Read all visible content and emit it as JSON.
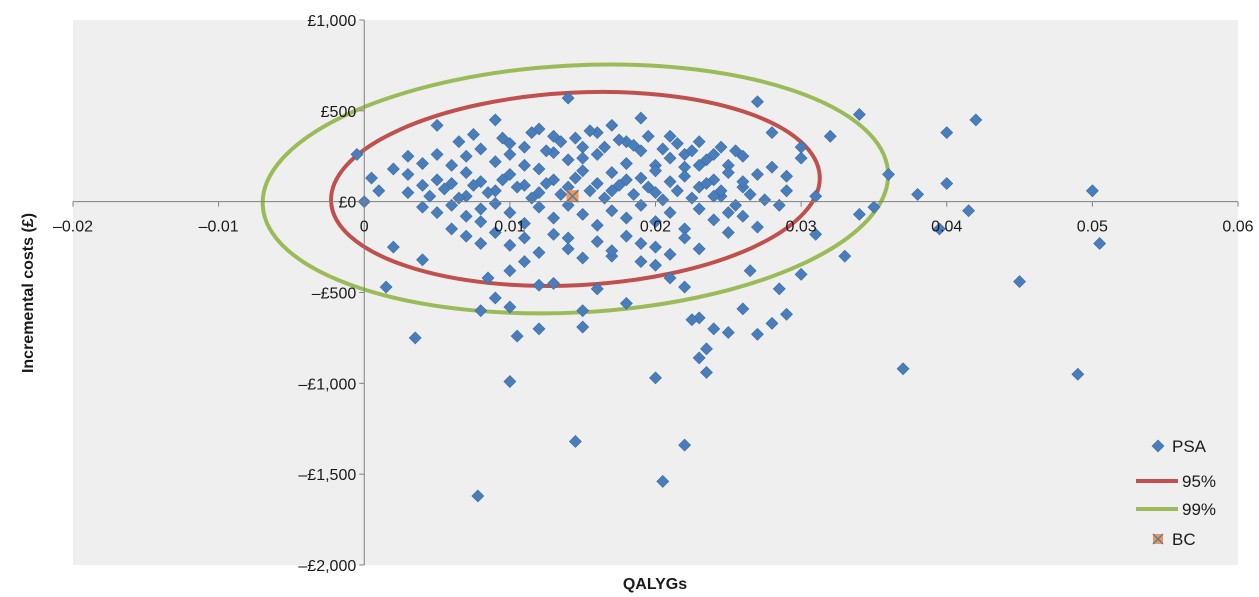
{
  "chart_data": {
    "type": "scatter",
    "title": "",
    "xlabel": "QALYGs",
    "ylabel": "Incremental costs (£)",
    "xlim": [
      -0.02,
      0.06
    ],
    "ylim": [
      -2000,
      1000
    ],
    "x_ticks": [
      -0.02,
      -0.01,
      0,
      0.01,
      0.02,
      0.03,
      0.04,
      0.05,
      0.06
    ],
    "x_tick_labels": [
      "–0.02",
      "–0.01",
      "0",
      "0.01",
      "0.02",
      "0.03",
      "0.04",
      "0.05",
      "0.06"
    ],
    "y_ticks": [
      1000,
      500,
      0,
      -500,
      -1000,
      -1500,
      -2000
    ],
    "y_tick_labels": [
      "£1,000",
      "£500",
      "£0",
      "–£500",
      "–£1,000",
      "–£1,500",
      "–£2,000"
    ],
    "grid": false,
    "legend_position": "bottom-right",
    "series": [
      {
        "name": "PSA",
        "marker": "diamond",
        "color": "#4a7ebb",
        "points": [
          [
            -0.0005,
            260
          ],
          [
            0.0,
            0
          ],
          [
            0.0005,
            130
          ],
          [
            0.002,
            -250
          ],
          [
            0.004,
            -320
          ],
          [
            0.003,
            50
          ],
          [
            0.005,
            420
          ],
          [
            0.007,
            30
          ],
          [
            0.008,
            -110
          ],
          [
            0.009,
            450
          ],
          [
            0.01,
            320
          ],
          [
            0.011,
            200
          ],
          [
            0.012,
            400
          ],
          [
            0.013,
            360
          ],
          [
            0.014,
            570
          ],
          [
            0.015,
            300
          ],
          [
            0.016,
            380
          ],
          [
            0.017,
            420
          ],
          [
            0.018,
            330
          ],
          [
            0.019,
            460
          ],
          [
            0.02,
            200
          ],
          [
            0.021,
            360
          ],
          [
            0.022,
            190
          ],
          [
            0.023,
            330
          ],
          [
            0.024,
            260
          ],
          [
            0.025,
            200
          ],
          [
            0.026,
            80
          ],
          [
            0.027,
            550
          ],
          [
            0.028,
            380
          ],
          [
            0.029,
            140
          ],
          [
            0.03,
            240
          ],
          [
            0.031,
            -180
          ],
          [
            0.032,
            360
          ],
          [
            0.033,
            -300
          ],
          [
            0.034,
            480
          ],
          [
            0.035,
            -30
          ],
          [
            0.0085,
            -420
          ],
          [
            0.009,
            -530
          ],
          [
            0.01,
            -380
          ],
          [
            0.011,
            -330
          ],
          [
            0.012,
            -460
          ],
          [
            0.013,
            -450
          ],
          [
            0.014,
            -200
          ],
          [
            0.015,
            -600
          ],
          [
            0.016,
            -480
          ],
          [
            0.017,
            -300
          ],
          [
            0.018,
            -560
          ],
          [
            0.019,
            -230
          ],
          [
            0.02,
            -350
          ],
          [
            0.021,
            -420
          ],
          [
            0.022,
            -470
          ],
          [
            0.023,
            -640
          ],
          [
            0.024,
            -700
          ],
          [
            0.025,
            -720
          ],
          [
            0.026,
            -590
          ],
          [
            0.027,
            -730
          ],
          [
            0.028,
            -670
          ],
          [
            0.029,
            -620
          ],
          [
            0.0285,
            -480
          ],
          [
            0.03,
            -400
          ],
          [
            0.0015,
            -470
          ],
          [
            0.0035,
            -750
          ],
          [
            0.008,
            -600
          ],
          [
            0.01,
            -580
          ],
          [
            0.0105,
            -740
          ],
          [
            0.012,
            -700
          ],
          [
            0.015,
            -690
          ],
          [
            0.0225,
            -650
          ],
          [
            0.023,
            -860
          ],
          [
            0.0235,
            -810
          ],
          [
            0.02,
            -970
          ],
          [
            0.0235,
            -940
          ],
          [
            0.01,
            -990
          ],
          [
            0.0145,
            -1320
          ],
          [
            0.022,
            -1340
          ],
          [
            0.0205,
            -1540
          ],
          [
            0.0078,
            -1620
          ],
          [
            0.037,
            -920
          ],
          [
            0.049,
            -950
          ],
          [
            0.045,
            -440
          ],
          [
            0.0505,
            -230
          ],
          [
            0.05,
            60
          ],
          [
            0.042,
            450
          ],
          [
            0.04,
            380
          ],
          [
            0.04,
            100
          ],
          [
            0.038,
            40
          ],
          [
            0.0415,
            -50
          ],
          [
            0.0395,
            -150
          ],
          [
            0.036,
            150
          ],
          [
            0.034,
            -70
          ],
          [
            0.03,
            300
          ],
          [
            0.029,
            60
          ],
          [
            0.0265,
            -380
          ],
          [
            0.031,
            30
          ],
          [
            0.001,
            60
          ],
          [
            0.002,
            180
          ],
          [
            0.003,
            150
          ],
          [
            0.004,
            90
          ],
          [
            0.005,
            120
          ],
          [
            0.006,
            200
          ],
          [
            0.007,
            160
          ],
          [
            0.008,
            110
          ],
          [
            0.009,
            220
          ],
          [
            0.01,
            150
          ],
          [
            0.011,
            90
          ],
          [
            0.012,
            180
          ],
          [
            0.013,
            120
          ],
          [
            0.014,
            230
          ],
          [
            0.015,
            170
          ],
          [
            0.016,
            100
          ],
          [
            0.017,
            160
          ],
          [
            0.018,
            210
          ],
          [
            0.019,
            130
          ],
          [
            0.02,
            170
          ],
          [
            0.021,
            110
          ],
          [
            0.022,
            140
          ],
          [
            0.023,
            80
          ],
          [
            0.024,
            120
          ],
          [
            0.025,
            160
          ],
          [
            0.026,
            110
          ],
          [
            0.027,
            150
          ],
          [
            0.028,
            190
          ],
          [
            0.0245,
            30
          ],
          [
            0.0255,
            -20
          ],
          [
            0.003,
            250
          ],
          [
            0.004,
            210
          ],
          [
            0.005,
            260
          ],
          [
            0.006,
            100
          ],
          [
            0.007,
            250
          ],
          [
            0.008,
            290
          ],
          [
            0.009,
            60
          ],
          [
            0.01,
            260
          ],
          [
            0.011,
            300
          ],
          [
            0.012,
            50
          ],
          [
            0.013,
            270
          ],
          [
            0.014,
            80
          ],
          [
            0.015,
            240
          ],
          [
            0.016,
            260
          ],
          [
            0.017,
            60
          ],
          [
            0.018,
            120
          ],
          [
            0.019,
            280
          ],
          [
            0.02,
            50
          ],
          [
            0.021,
            240
          ],
          [
            0.022,
            260
          ],
          [
            0.023,
            200
          ],
          [
            0.024,
            30
          ],
          [
            0.025,
            -60
          ],
          [
            0.026,
            250
          ],
          [
            0.004,
            -30
          ],
          [
            0.005,
            -60
          ],
          [
            0.006,
            -20
          ],
          [
            0.007,
            -80
          ],
          [
            0.008,
            -40
          ],
          [
            0.009,
            -10
          ],
          [
            0.01,
            -60
          ],
          [
            0.011,
            -120
          ],
          [
            0.012,
            -30
          ],
          [
            0.013,
            -90
          ],
          [
            0.014,
            -20
          ],
          [
            0.015,
            -70
          ],
          [
            0.016,
            -130
          ],
          [
            0.017,
            -50
          ],
          [
            0.018,
            -90
          ],
          [
            0.019,
            -20
          ],
          [
            0.02,
            -110
          ],
          [
            0.021,
            -60
          ],
          [
            0.022,
            -150
          ],
          [
            0.023,
            -40
          ],
          [
            0.024,
            -100
          ],
          [
            0.025,
            -170
          ],
          [
            0.026,
            -80
          ],
          [
            0.027,
            -140
          ],
          [
            0.006,
            -150
          ],
          [
            0.007,
            -190
          ],
          [
            0.008,
            -230
          ],
          [
            0.009,
            -170
          ],
          [
            0.01,
            -240
          ],
          [
            0.011,
            -200
          ],
          [
            0.012,
            -280
          ],
          [
            0.013,
            -180
          ],
          [
            0.014,
            -260
          ],
          [
            0.015,
            -310
          ],
          [
            0.016,
            -220
          ],
          [
            0.017,
            -270
          ],
          [
            0.018,
            -190
          ],
          [
            0.019,
            -330
          ],
          [
            0.02,
            -250
          ],
          [
            0.021,
            -290
          ],
          [
            0.022,
            -200
          ],
          [
            0.023,
            -260
          ],
          [
            0.0065,
            330
          ],
          [
            0.0075,
            370
          ],
          [
            0.0095,
            350
          ],
          [
            0.0115,
            380
          ],
          [
            0.0125,
            280
          ],
          [
            0.0135,
            330
          ],
          [
            0.0145,
            350
          ],
          [
            0.0155,
            390
          ],
          [
            0.0165,
            300
          ],
          [
            0.0175,
            340
          ],
          [
            0.0185,
            310
          ],
          [
            0.0195,
            360
          ],
          [
            0.0205,
            290
          ],
          [
            0.0215,
            320
          ],
          [
            0.0225,
            280
          ],
          [
            0.0235,
            230
          ],
          [
            0.0245,
            300
          ],
          [
            0.0255,
            280
          ],
          [
            0.0045,
            30
          ],
          [
            0.0055,
            70
          ],
          [
            0.0065,
            20
          ],
          [
            0.0075,
            90
          ],
          [
            0.0085,
            50
          ],
          [
            0.0095,
            120
          ],
          [
            0.0105,
            80
          ],
          [
            0.0115,
            20
          ],
          [
            0.0125,
            100
          ],
          [
            0.0135,
            40
          ],
          [
            0.0145,
            130
          ],
          [
            0.0155,
            60
          ],
          [
            0.0165,
            20
          ],
          [
            0.0175,
            90
          ],
          [
            0.0185,
            40
          ],
          [
            0.0195,
            80
          ],
          [
            0.0205,
            10
          ],
          [
            0.0215,
            60
          ],
          [
            0.0225,
            20
          ],
          [
            0.0235,
            100
          ],
          [
            0.0245,
            60
          ],
          [
            0.0265,
            40
          ],
          [
            0.0275,
            10
          ],
          [
            0.0285,
            -20
          ]
        ]
      },
      {
        "name": "95%",
        "type": "ellipse",
        "color": "#c0504d",
        "center": [
          0.0145,
          70
        ],
        "semi_axes": [
          0.0168,
          530
        ],
        "rotation_deg": -3
      },
      {
        "name": "99%",
        "type": "ellipse",
        "color": "#9bbb59",
        "center": [
          0.0145,
          70
        ],
        "semi_axes": [
          0.0215,
          680
        ],
        "rotation_deg": -3
      },
      {
        "name": "BC",
        "marker": "square-x",
        "color": "#f79646",
        "points": [
          [
            0.0143,
            30
          ]
        ]
      }
    ]
  }
}
